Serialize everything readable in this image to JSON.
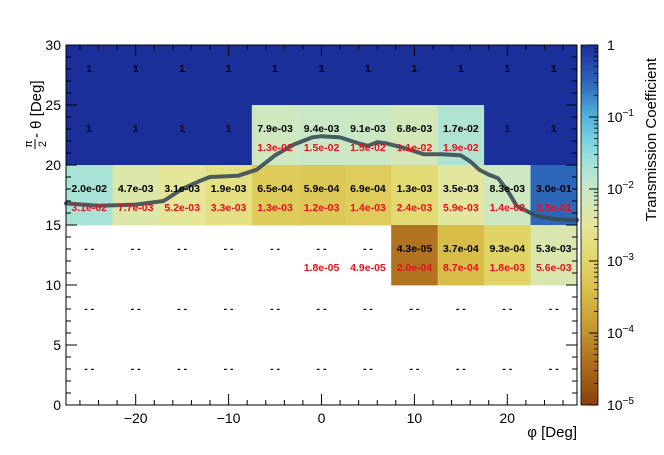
{
  "chart_data": {
    "type": "heatmap",
    "title": "",
    "xlabel": "φ [Deg]",
    "ylabel": "π/2 - θ [Deg]",
    "ylabel_frac_num": "π",
    "ylabel_frac_den": "2",
    "ylabel_rest": " - θ [Deg]",
    "zlabel": "Transmission Coefficient",
    "xlim": [
      -27.5,
      27.5
    ],
    "ylim": [
      0,
      30
    ],
    "zlim": [
      1e-05,
      1
    ],
    "z_scale": "log",
    "x_ticks": [
      -20,
      -10,
      0,
      10,
      20
    ],
    "x_tick_labels": [
      "−20",
      "−10",
      "0",
      "10",
      "20"
    ],
    "y_ticks": [
      0,
      5,
      10,
      15,
      20,
      25,
      30
    ],
    "y_tick_labels": [
      "0",
      "5",
      "10",
      "15",
      "20",
      "25",
      "30"
    ],
    "z_tick_labels": [
      {
        "base": "10",
        "exp": "−5",
        "value": 1e-05
      },
      {
        "base": "10",
        "exp": "−4",
        "value": 0.0001
      },
      {
        "base": "10",
        "exp": "−3",
        "value": 0.001
      },
      {
        "base": "10",
        "exp": "−2",
        "value": 0.01
      },
      {
        "base": "10",
        "exp": "−1",
        "value": 0.1
      },
      {
        "base": "1",
        "exp": "",
        "value": 1
      }
    ],
    "phi_bins": [
      -25,
      -20,
      -15,
      -10,
      -5,
      0,
      5,
      10,
      15,
      20,
      25
    ],
    "rows": [
      {
        "theta": 27.5,
        "black": [
          "1",
          "1",
          "1",
          "1",
          "1",
          "1",
          "1",
          "1",
          "1",
          "1",
          "1"
        ],
        "red": [
          "",
          "",
          "",
          "",
          "",
          "",
          "",
          "",
          "",
          "",
          ""
        ]
      },
      {
        "theta": 22.5,
        "black": [
          "1",
          "1",
          "1",
          "1",
          "7.9e-03",
          "9.4e-03",
          "9.1e-03",
          "6.8e-03",
          "1.7e-02",
          "1",
          "1"
        ],
        "red": [
          "",
          "",
          "",
          "",
          "1.3e-02",
          "1.5e-02",
          "1.5e-02",
          "1.1e-02",
          "1.9e-02",
          "",
          ""
        ]
      },
      {
        "theta": 17.5,
        "black": [
          "2.0e-02",
          "4.7e-03",
          "3.1e-03",
          "1.9e-03",
          "6.5e-04",
          "5.9e-04",
          "6.9e-04",
          "1.3e-03",
          "3.5e-03",
          "8.3e-03",
          "3.0e-01"
        ],
        "red": [
          "3.1e-02",
          "7.7e-03",
          "5.2e-03",
          "3.3e-03",
          "1.3e-03",
          "1.2e-03",
          "1.4e-03",
          "2.4e-03",
          "5.9e-03",
          "1.4e-02",
          "3.8e-01"
        ]
      },
      {
        "theta": 12.5,
        "black": [
          "- -",
          "- -",
          "- -",
          "- -",
          "- -",
          "- -",
          "- -",
          "4.3e-05",
          "3.7e-04",
          "9.3e-04",
          "5.3e-03"
        ],
        "red": [
          "",
          "",
          "",
          "",
          "",
          "1.8e-05",
          "4.9e-05",
          "2.0e-04",
          "8.7e-04",
          "1.8e-03",
          "5.6e-03"
        ]
      },
      {
        "theta": 7.5,
        "black": [
          "- -",
          "- -",
          "- -",
          "- -",
          "- -",
          "- -",
          "- -",
          "- -",
          "- -",
          "- -",
          "- -"
        ],
        "red": [
          "",
          "",
          "",
          "",
          "",
          "",
          "",
          "",
          "",
          "",
          ""
        ]
      },
      {
        "theta": 2.5,
        "black": [
          "- -",
          "- -",
          "- -",
          "- -",
          "- -",
          "- -",
          "- -",
          "- -",
          "- -",
          "- -",
          "- -"
        ],
        "red": [
          "",
          "",
          "",
          "",
          "",
          "",
          "",
          "",
          "",
          "",
          ""
        ]
      }
    ],
    "filled_cells": [
      {
        "phi": -25,
        "theta": 27.5,
        "z": 1
      },
      {
        "phi": -20,
        "theta": 27.5,
        "z": 1
      },
      {
        "phi": -15,
        "theta": 27.5,
        "z": 1
      },
      {
        "phi": -10,
        "theta": 27.5,
        "z": 1
      },
      {
        "phi": -5,
        "theta": 27.5,
        "z": 1
      },
      {
        "phi": 0,
        "theta": 27.5,
        "z": 1
      },
      {
        "phi": 5,
        "theta": 27.5,
        "z": 1
      },
      {
        "phi": 10,
        "theta": 27.5,
        "z": 1
      },
      {
        "phi": 15,
        "theta": 27.5,
        "z": 1
      },
      {
        "phi": 20,
        "theta": 27.5,
        "z": 1
      },
      {
        "phi": 25,
        "theta": 27.5,
        "z": 1
      },
      {
        "phi": -25,
        "theta": 22.5,
        "z": 1
      },
      {
        "phi": -20,
        "theta": 22.5,
        "z": 1
      },
      {
        "phi": -15,
        "theta": 22.5,
        "z": 1
      },
      {
        "phi": -10,
        "theta": 22.5,
        "z": 1
      },
      {
        "phi": -5,
        "theta": 22.5,
        "z": 0.0079
      },
      {
        "phi": 0,
        "theta": 22.5,
        "z": 0.0094
      },
      {
        "phi": 5,
        "theta": 22.5,
        "z": 0.0091
      },
      {
        "phi": 10,
        "theta": 22.5,
        "z": 0.0068
      },
      {
        "phi": 15,
        "theta": 22.5,
        "z": 0.017
      },
      {
        "phi": 20,
        "theta": 22.5,
        "z": 1
      },
      {
        "phi": 25,
        "theta": 22.5,
        "z": 1
      },
      {
        "phi": -25,
        "theta": 17.5,
        "z": 0.02
      },
      {
        "phi": -20,
        "theta": 17.5,
        "z": 0.0047
      },
      {
        "phi": -15,
        "theta": 17.5,
        "z": 0.0031
      },
      {
        "phi": -10,
        "theta": 17.5,
        "z": 0.0019
      },
      {
        "phi": -5,
        "theta": 17.5,
        "z": 0.00065
      },
      {
        "phi": 0,
        "theta": 17.5,
        "z": 0.00059
      },
      {
        "phi": 5,
        "theta": 17.5,
        "z": 0.00069
      },
      {
        "phi": 10,
        "theta": 17.5,
        "z": 0.0013
      },
      {
        "phi": 15,
        "theta": 17.5,
        "z": 0.0035
      },
      {
        "phi": 20,
        "theta": 17.5,
        "z": 0.0083
      },
      {
        "phi": 25,
        "theta": 17.5,
        "z": 0.3
      },
      {
        "phi": 10,
        "theta": 12.5,
        "z": 4.3e-05
      },
      {
        "phi": 15,
        "theta": 12.5,
        "z": 0.00037
      },
      {
        "phi": 20,
        "theta": 12.5,
        "z": 0.00093
      },
      {
        "phi": 25,
        "theta": 12.5,
        "z": 0.0053
      }
    ],
    "boundary_curve": {
      "phi": [
        -27.5,
        -24,
        -20,
        -17,
        -15,
        -13,
        -12,
        -9,
        -7,
        -5,
        -3,
        -1,
        0,
        2,
        4,
        5,
        6,
        7,
        9,
        11,
        13,
        15,
        16,
        17,
        18,
        19,
        20,
        21,
        23,
        25,
        27.5
      ],
      "theta": [
        16.8,
        16.6,
        16.7,
        17.0,
        18.0,
        18.7,
        19.0,
        19.1,
        19.6,
        20.8,
        21.7,
        22.3,
        22.4,
        22.3,
        21.8,
        21.6,
        21.9,
        21.8,
        21.4,
        20.9,
        20.9,
        20.8,
        20.3,
        19.6,
        19.2,
        18.9,
        17.9,
        16.6,
        15.8,
        15.5,
        15.4
      ]
    }
  }
}
